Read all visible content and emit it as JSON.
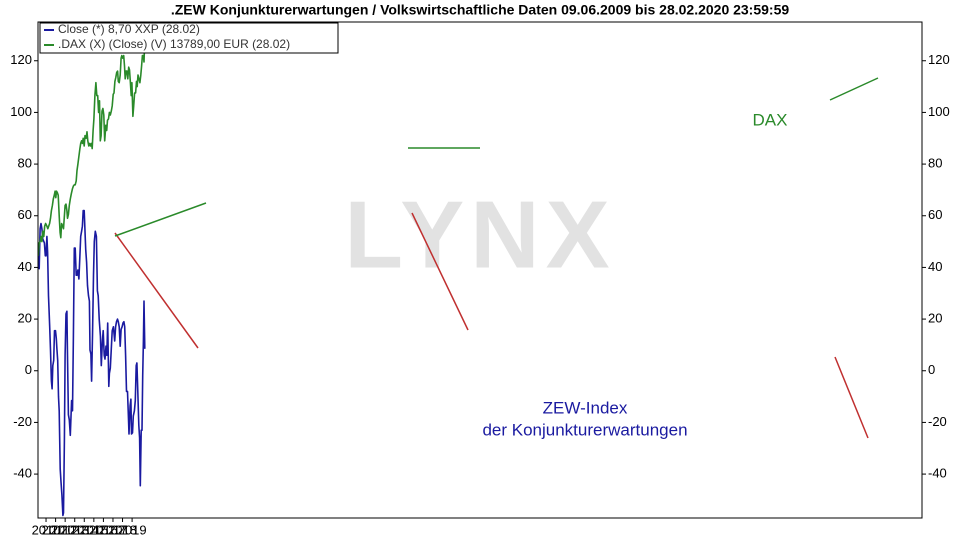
{
  "chart_data": {
    "type": "line",
    "title": ".ZEW Konjunkturerwartungen / Volkswirtschaftliche Daten 09.06.2009 bis 28.02.2020 23:59:59",
    "watermark": "LYNX",
    "annotations": [
      "DAX",
      "ZEW-Index",
      "der Konjunkturerwartungen"
    ],
    "xlim": [
      2009.66,
      2102.105
    ],
    "xticks": [
      {
        "value": 2010.5,
        "label": "2010"
      },
      {
        "value": 2011.5,
        "label": "2011"
      },
      {
        "value": 2012.5,
        "label": "2012"
      },
      {
        "value": 2013.5,
        "label": "2013"
      },
      {
        "value": 2014.5,
        "label": "2014"
      },
      {
        "value": 2015.5,
        "label": "2015"
      },
      {
        "value": 2016.5,
        "label": "2016"
      },
      {
        "value": 2017.5,
        "label": "2017"
      },
      {
        "value": 2018.5,
        "label": "2018"
      },
      {
        "value": 2019.5,
        "label": "2019"
      }
    ],
    "ylim": [
      -57,
      135
    ],
    "yticks": [
      -40,
      -20,
      0,
      20,
      40,
      60,
      80,
      100,
      120
    ],
    "grid": false,
    "legend": "top-left",
    "series": [
      {
        "name": "Close (*) 8,70 XXP (28.02)",
        "color": "#1a1aa0",
        "x": [
          2009.69,
          2009.79,
          2009.88,
          2009.97,
          2010.07,
          2010.16,
          2010.33,
          2010.42,
          2010.5,
          2010.59,
          2010.66,
          2010.76,
          2010.88,
          2010.97,
          2011.06,
          2011.13,
          2011.21,
          2011.3,
          2011.39,
          2011.49,
          2011.57,
          2011.64,
          2011.72,
          2011.8,
          2011.88,
          2011.98,
          2012.07,
          2012.16,
          2012.26,
          2012.33,
          2012.42,
          2012.49,
          2012.59,
          2012.68,
          2012.75,
          2012.84,
          2012.93,
          2013.04,
          2013.17,
          2013.27,
          2013.36,
          2013.46,
          2013.55,
          2013.65,
          2013.74,
          2013.83,
          2013.94,
          2014.04,
          2014.13,
          2014.22,
          2014.3,
          2014.39,
          2014.49,
          2014.56,
          2014.65,
          2014.74,
          2014.84,
          2014.94,
          2015.03,
          2015.1,
          2015.19,
          2015.27,
          2015.36,
          2015.46,
          2015.55,
          2015.65,
          2015.77,
          2015.87,
          2015.96,
          2016.06,
          2016.19,
          2016.28,
          2016.39,
          2016.48,
          2016.58,
          2016.67,
          2016.77,
          2016.86,
          2016.95,
          2017.06,
          2017.13,
          2017.22,
          2017.33,
          2017.42,
          2017.55,
          2017.68,
          2017.78,
          2017.87,
          2017.97,
          2018.06,
          2018.15,
          2018.26,
          2018.35,
          2018.45,
          2018.55,
          2018.64,
          2018.73,
          2018.82,
          2018.91,
          2019.02,
          2019.09,
          2019.18,
          2019.29,
          2019.38,
          2019.44,
          2019.54,
          2019.63,
          2019.74,
          2019.84,
          2019.93,
          2020.0,
          2020.1,
          2020.2,
          2020.28,
          2020.36,
          2020.45,
          2020.54,
          2020.61,
          2020.68,
          2020.74,
          2020.83
        ],
        "values": [
          44.5,
          39.5,
          55,
          57,
          55,
          51,
          49.5,
          44.5,
          44.5,
          52,
          46,
          29,
          17,
          8,
          -4,
          -7,
          2,
          4,
          15.5,
          15.5,
          12.5,
          8.5,
          4,
          -10,
          -15.5,
          -38,
          -43,
          -48,
          -56,
          -55,
          -27,
          6,
          22,
          23,
          6,
          -17,
          -19,
          -25,
          -11.5,
          -15.5,
          13.5,
          47.5,
          47.5,
          37,
          37,
          39,
          35.5,
          44.5,
          52,
          54,
          56,
          62,
          62,
          55,
          47,
          42,
          33,
          29,
          27,
          8,
          6.5,
          -4,
          13.5,
          37,
          50,
          54,
          52,
          31,
          29,
          20,
          13.5,
          2,
          11.5,
          15.5,
          6,
          4.5,
          9.5,
          6,
          18.5,
          -6,
          -1,
          1,
          8.5,
          15.5,
          17,
          11.5,
          17,
          19,
          20,
          19,
          17,
          9.5,
          16,
          17,
          18.5,
          19,
          17,
          6,
          -8,
          -8,
          -15.5,
          -24.5,
          -13.5,
          -11,
          -24.5,
          -24,
          -17.5,
          -15.5,
          -11.5,
          2,
          3,
          -8,
          -21,
          -26,
          -44.5,
          -23,
          -23,
          -2,
          11.5,
          27,
          8.5
        ]
      },
      {
        "name": ".DAX (X) (Close) (V) 13789,00 EUR (28.02)",
        "color": "#2a8a2a",
        "x": [
          2009.69,
          2009.79,
          2009.88,
          2009.97,
          2010.07,
          2010.16,
          2010.27,
          2010.36,
          2010.46,
          2010.59,
          2010.69,
          2010.78,
          2010.87,
          2010.97,
          2011.06,
          2011.17,
          2011.26,
          2011.36,
          2011.45,
          2011.52,
          2011.59,
          2011.68,
          2011.77,
          2011.88,
          2011.97,
          2012.04,
          2012.13,
          2012.24,
          2012.33,
          2012.42,
          2012.49,
          2012.59,
          2012.68,
          2012.75,
          2012.84,
          2012.93,
          2013.04,
          2013.14,
          2013.27,
          2013.36,
          2013.46,
          2013.55,
          2013.65,
          2013.74,
          2013.83,
          2013.94,
          2014.04,
          2014.13,
          2014.22,
          2014.3,
          2014.39,
          2014.49,
          2014.58,
          2014.69,
          2014.78,
          2014.87,
          2014.97,
          2015.07,
          2015.16,
          2015.25,
          2015.33,
          2015.42,
          2015.51,
          2015.61,
          2015.72,
          2015.81,
          2015.9,
          2016.0,
          2016.09,
          2016.17,
          2016.26,
          2016.35,
          2016.45,
          2016.54,
          2016.64,
          2016.75,
          2016.84,
          2016.93,
          2017.03,
          2017.13,
          2017.22,
          2017.33,
          2017.42,
          2017.52,
          2017.61,
          2017.7,
          2017.8,
          2017.89,
          2017.98,
          2018.06,
          2018.15,
          2018.26,
          2018.35,
          2018.42,
          2018.53,
          2018.62,
          2018.71,
          2018.78,
          2018.86,
          2018.96,
          2019.05,
          2019.14,
          2019.23,
          2019.32,
          2019.41,
          2019.48,
          2019.58,
          2019.67,
          2019.76,
          2019.87,
          2019.96,
          2020.03,
          2020.12,
          2020.21,
          2020.32,
          2020.41,
          2020.49,
          2020.58,
          2020.68,
          2020.75,
          2020.83
        ],
        "values": [
          44.5,
          49.5,
          50,
          52,
          50,
          54,
          52,
          56,
          57,
          56,
          55,
          56,
          57,
          59,
          62,
          64,
          66.5,
          68,
          69.5,
          67,
          69.5,
          69,
          68,
          60,
          53.5,
          51.5,
          57,
          56,
          55,
          60,
          64,
          64.5,
          62,
          59,
          60.5,
          64,
          66.5,
          68.5,
          70.5,
          71.5,
          72,
          72,
          73.5,
          77.5,
          80,
          83,
          86,
          88,
          89,
          88,
          90,
          87,
          91,
          90,
          92.5,
          89,
          87,
          88,
          87,
          88,
          86,
          93,
          97.5,
          106.5,
          111.5,
          106.5,
          106.5,
          100,
          104.5,
          89,
          91,
          100.5,
          101.5,
          99,
          89,
          95,
          93,
          97,
          97.5,
          100,
          99,
          100.5,
          102.5,
          107,
          107.5,
          112,
          113.5,
          115.5,
          116,
          112,
          111.5,
          114.5,
          121,
          122,
          121,
          122,
          118,
          113,
          116,
          116,
          113,
          117.5,
          116.5,
          111.5,
          106.5,
          111.5,
          98.5,
          102.5,
          107.5,
          107.5,
          112,
          110,
          114.5,
          113,
          111.5,
          114.5,
          118,
          122,
          122,
          119.5,
          128.5
        ]
      }
    ]
  }
}
